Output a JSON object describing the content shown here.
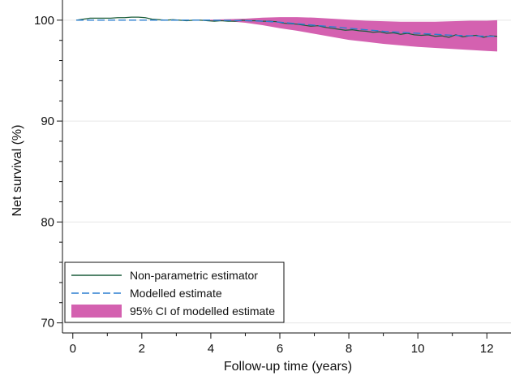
{
  "colors": {
    "nonparametric": "#1a5c3a",
    "modelled": "#2b7fd0",
    "ci": "#d461b0",
    "grid": "#e6e6e6",
    "axis": "#111111"
  },
  "chart_data": {
    "type": "line",
    "xlabel": "Follow-up time (years)",
    "ylabel": "Net survival (%)",
    "xlim": [
      -0.3,
      12.7
    ],
    "ylim": [
      69,
      102
    ],
    "xticks": [
      0,
      2,
      4,
      6,
      8,
      10,
      12
    ],
    "yticks": [
      70,
      80,
      90,
      100
    ],
    "grid": "horizontal",
    "legend_position": "bottom-left",
    "series": [
      {
        "name": "Non-parametric estimator",
        "style": "solid",
        "x": [
          0.1,
          0.3,
          0.5,
          0.7,
          0.9,
          1.1,
          1.3,
          1.5,
          1.7,
          1.9,
          2.1,
          2.3,
          2.5,
          2.7,
          2.9,
          3.1,
          3.3,
          3.5,
          3.7,
          3.9,
          4.1,
          4.3,
          4.5,
          4.7,
          4.9,
          5.1,
          5.3,
          5.5,
          5.7,
          5.9,
          6.1,
          6.3,
          6.5,
          6.7,
          6.9,
          7.1,
          7.3,
          7.5,
          7.7,
          7.9,
          8.1,
          8.3,
          8.5,
          8.7,
          8.9,
          9.1,
          9.3,
          9.5,
          9.7,
          9.9,
          10.1,
          10.3,
          10.5,
          10.7,
          10.9,
          11.1,
          11.3,
          11.5,
          11.7,
          11.9,
          12.1,
          12.3
        ],
        "values": [
          100.0,
          100.1,
          100.2,
          100.2,
          100.2,
          100.2,
          100.25,
          100.25,
          100.3,
          100.3,
          100.25,
          100.1,
          100.05,
          100.0,
          100.05,
          100.0,
          99.95,
          100.0,
          100.0,
          99.95,
          99.9,
          99.95,
          99.9,
          99.9,
          100.0,
          99.95,
          99.95,
          99.9,
          99.9,
          99.85,
          99.7,
          99.65,
          99.6,
          99.5,
          99.4,
          99.45,
          99.3,
          99.2,
          99.1,
          99.0,
          99.05,
          98.95,
          98.9,
          98.8,
          98.85,
          98.7,
          98.75,
          98.6,
          98.7,
          98.55,
          98.5,
          98.55,
          98.4,
          98.45,
          98.3,
          98.55,
          98.35,
          98.45,
          98.5,
          98.3,
          98.45,
          98.4
        ]
      },
      {
        "name": "Modelled estimate",
        "style": "dashed",
        "x": [
          0.1,
          1,
          2,
          3,
          4,
          5,
          5.5,
          6,
          6.5,
          7,
          7.5,
          8,
          8.5,
          9,
          9.5,
          10,
          10.5,
          11,
          11.5,
          12,
          12.3
        ],
        "values": [
          100.0,
          100.0,
          100.0,
          100.0,
          100.0,
          99.95,
          99.9,
          99.8,
          99.65,
          99.5,
          99.35,
          99.2,
          99.05,
          98.9,
          98.8,
          98.7,
          98.6,
          98.5,
          98.45,
          98.4,
          98.4
        ]
      },
      {
        "name": "95% CI of modelled estimate",
        "style": "band",
        "x": [
          0.1,
          1,
          2,
          3,
          4,
          4.5,
          5,
          5.5,
          6,
          6.5,
          7,
          7.5,
          8,
          8.5,
          9,
          9.5,
          10,
          10.5,
          11,
          11.5,
          12,
          12.3
        ],
        "lower": [
          100.0,
          100.0,
          100.0,
          100.0,
          99.95,
          99.9,
          99.75,
          99.5,
          99.2,
          98.95,
          98.65,
          98.35,
          98.05,
          97.85,
          97.65,
          97.5,
          97.35,
          97.25,
          97.15,
          97.05,
          96.95,
          96.9
        ],
        "upper": [
          100.0,
          100.0,
          100.0,
          100.0,
          100.05,
          100.1,
          100.15,
          100.25,
          100.3,
          100.3,
          100.25,
          100.15,
          100.05,
          99.95,
          99.9,
          99.85,
          99.85,
          99.85,
          99.9,
          99.95,
          99.95,
          100.0
        ]
      }
    ]
  }
}
